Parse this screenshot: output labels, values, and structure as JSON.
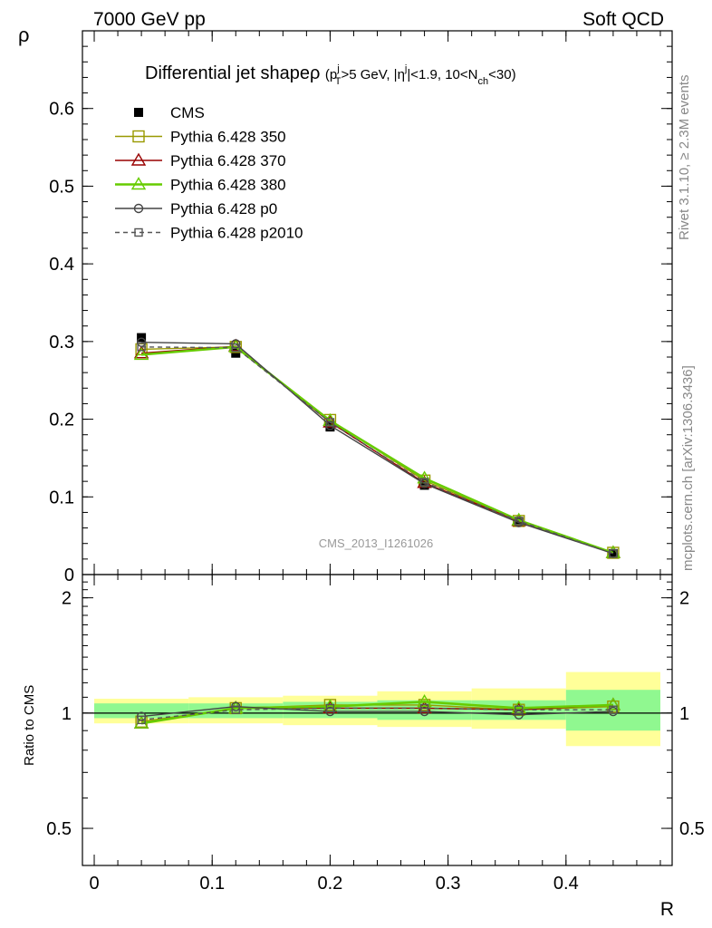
{
  "header": {
    "energy_label": "7000 GeV pp",
    "category_label": "Soft QCD"
  },
  "side_labels": {
    "rivet": "Rivet 3.1.10, ≥ 2.3M events",
    "mcplots": "mcplots.cern.ch [arXiv:1306.3436]"
  },
  "watermark": "CMS_2013_I1261026",
  "chart_data": {
    "type": "line",
    "title": "Differential jet shapeρ",
    "title_cuts": {
      "pt_var": "p",
      "pt_sup": "j",
      "pt_sub": "T",
      "pt_cut": ">5 GeV, |",
      "eta_var": "η",
      "eta_sup": "j",
      "eta_cut": "|<1.9, 10<N",
      "nch_sub": "ch",
      "nch_cut": "<30)"
    },
    "xlabel": "R",
    "ylabel": "ρ",
    "ratio_ylabel": "Ratio to CMS",
    "xlim": [
      -0.01,
      0.49
    ],
    "ylim": [
      0,
      0.7
    ],
    "ratio_ylim": [
      0.4,
      2.3
    ],
    "x_ticks": [
      "0",
      "0.1",
      "0.2",
      "0.3",
      "0.4"
    ],
    "y_ticks": [
      "0",
      "0.1",
      "0.2",
      "0.3",
      "0.4",
      "0.5",
      "0.6"
    ],
    "ratio_ticks": [
      "0.5",
      "1",
      "2"
    ],
    "grid": false,
    "legend_position": "top-left",
    "x": [
      0.04,
      0.12,
      0.2,
      0.28,
      0.36,
      0.44
    ],
    "data": {
      "name": "CMS",
      "values": [
        0.305,
        0.285,
        0.19,
        0.115,
        0.068,
        0.027
      ]
    },
    "ratio_bands": {
      "x_edges": [
        0.0,
        0.08,
        0.16,
        0.24,
        0.32,
        0.4,
        0.48
      ],
      "inner_low": [
        0.97,
        0.97,
        0.97,
        0.96,
        0.96,
        0.9
      ],
      "inner_high": [
        1.06,
        1.06,
        1.07,
        1.08,
        1.08,
        1.15
      ],
      "outer_low": [
        0.94,
        0.94,
        0.93,
        0.92,
        0.91,
        0.82
      ],
      "outer_high": [
        1.09,
        1.1,
        1.11,
        1.14,
        1.16,
        1.28
      ],
      "inner_color": "#90f890",
      "outer_color": "#ffff99"
    },
    "series": [
      {
        "name": "Pythia 6.428 350",
        "color": "#999900",
        "marker": "open-square",
        "dash": false,
        "values": [
          0.29,
          0.293,
          0.199,
          0.121,
          0.069,
          0.028
        ],
        "ratio": [
          0.95,
          1.03,
          1.05,
          1.05,
          1.02,
          1.04
        ]
      },
      {
        "name": "Pythia 6.428 370",
        "color": "#990000",
        "marker": "open-triangle",
        "dash": false,
        "values": [
          0.285,
          0.294,
          0.196,
          0.118,
          0.069,
          0.028
        ],
        "ratio": [
          0.94,
          1.03,
          1.03,
          1.03,
          1.02,
          1.05
        ]
      },
      {
        "name": "Pythia 6.428 380",
        "color": "#66cc00",
        "marker": "open-triangle",
        "dash": false,
        "values": [
          0.283,
          0.293,
          0.198,
          0.124,
          0.07,
          0.028
        ],
        "ratio": [
          0.94,
          1.03,
          1.04,
          1.07,
          1.03,
          1.05
        ]
      },
      {
        "name": "Pythia 6.428 p0",
        "color": "#444444",
        "marker": "open-circle",
        "dash": false,
        "values": [
          0.299,
          0.297,
          0.192,
          0.117,
          0.067,
          0.027
        ],
        "ratio": [
          0.98,
          1.04,
          1.01,
          1.01,
          0.99,
          1.01
        ]
      },
      {
        "name": "Pythia 6.428 p2010",
        "color": "#555555",
        "marker": "open-square-small",
        "dash": true,
        "values": [
          0.293,
          0.292,
          0.196,
          0.119,
          0.069,
          0.027
        ],
        "ratio": [
          0.96,
          1.02,
          1.03,
          1.03,
          1.02,
          1.02
        ]
      }
    ]
  }
}
